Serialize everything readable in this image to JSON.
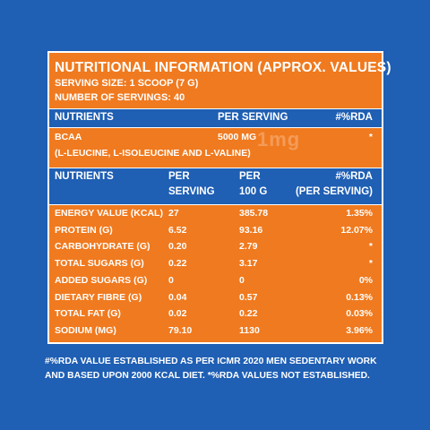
{
  "panel": {
    "title": "NUTRITIONAL INFORMATION (APPROX. VALUES)",
    "serving_size": "SERVING SIZE: 1 SCOOP (7 G)",
    "num_servings": "NUMBER OF SERVINGS: 40"
  },
  "header1": {
    "nutrients": "NUTRIENTS",
    "per_serving": "PER SERVING",
    "rda": "#%RDA"
  },
  "bcaa": {
    "name": "BCAA",
    "per_serving": "5000 MG",
    "rda": "*",
    "sub": "(L-LEUCINE, L-ISOLEUCINE AND L-VALINE)"
  },
  "watermark": "1mg",
  "header2": {
    "nutrients": "NUTRIENTS",
    "per_serving_1": "PER",
    "per_serving_2": "SERVING",
    "per_100g_1": "PER",
    "per_100g_2": "100 G",
    "rda_1": "#%RDA",
    "rda_2": "(PER SERVING)"
  },
  "rows": [
    {
      "name": "ENERGY VALUE (KCAL)",
      "per_serving": "27",
      "per_100g": "385.78",
      "rda": "1.35%"
    },
    {
      "name": "PROTEIN (G)",
      "per_serving": "6.52",
      "per_100g": "93.16",
      "rda": "12.07%"
    },
    {
      "name": "CARBOHYDRATE (G)",
      "per_serving": "0.20",
      "per_100g": "2.79",
      "rda": "*"
    },
    {
      "name": "TOTAL SUGARS (G)",
      "per_serving": "0.22",
      "per_100g": "3.17",
      "rda": "*"
    },
    {
      "name": "ADDED SUGARS (G)",
      "per_serving": "0",
      "per_100g": "0",
      "rda": "0%"
    },
    {
      "name": "DIETARY FIBRE (G)",
      "per_serving": "0.04",
      "per_100g": "0.57",
      "rda": "0.13%"
    },
    {
      "name": "TOTAL FAT (G)",
      "per_serving": "0.02",
      "per_100g": "0.22",
      "rda": "0.03%"
    },
    {
      "name": "SODIUM (MG)",
      "per_serving": "79.10",
      "per_100g": "1130",
      "rda": "3.96%"
    }
  ],
  "footer": "#%RDA VALUE ESTABLISHED AS PER ICMR 2020 MEN SEDENTARY WORK AND BASED UPON 2000 KCAL DIET. *%RDA VALUES NOT ESTABLISHED.",
  "colors": {
    "background": "#1f5fb4",
    "panel": "#f07a1f",
    "text": "#ffffff"
  }
}
